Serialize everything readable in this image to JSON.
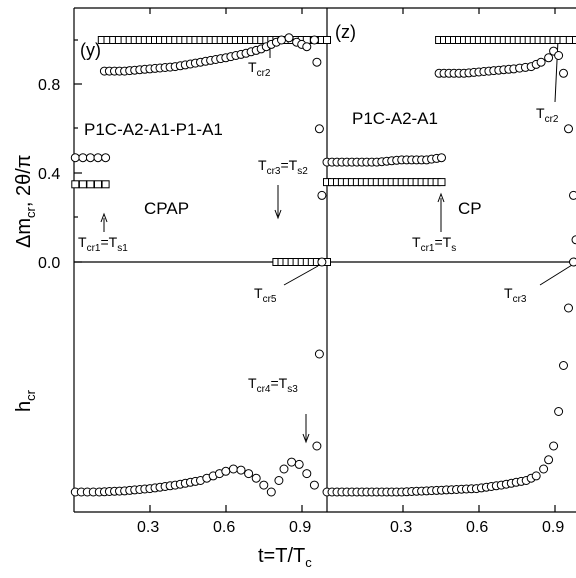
{
  "chart_data": [
    {
      "type": "scatter",
      "panel_label": "(y)",
      "structure_label": "P1C-A2-A1-P1-A1",
      "phase_label": "CPAP",
      "xlim": [
        0.0,
        1.0
      ],
      "ylim_upper": [
        0.0,
        1.12
      ],
      "series": [
        {
          "marker": "square",
          "segments": [
            {
              "x": [
                0.005,
                0.035,
                0.065,
                0.095,
                0.125
              ],
              "y": [
                0.35,
                0.35,
                0.35,
                0.35,
                0.35
              ]
            },
            {
              "x": [
                0.11,
                0.2,
                0.3,
                0.4,
                0.5,
                0.6,
                0.7,
                0.8,
                0.88,
                0.92,
                0.95,
                0.98,
                1.0
              ],
              "y": [
                1.0,
                1.0,
                1.0,
                1.0,
                1.0,
                1.0,
                1.0,
                1.0,
                1.0,
                1.0,
                1.0,
                1.0,
                1.0
              ]
            },
            {
              "x": [
                0.8,
                0.82,
                0.84,
                0.86,
                0.88,
                0.9,
                0.92,
                0.94,
                0.96,
                0.98,
                1.0
              ],
              "y": [
                0.0,
                0.0,
                0.0,
                0.0,
                0.0,
                0.0,
                0.0,
                0.0,
                0.0,
                0.0,
                0.0
              ]
            }
          ]
        },
        {
          "marker": "circle",
          "segments": [
            {
              "x": [
                0.005,
                0.035,
                0.065,
                0.095,
                0.125
              ],
              "y": [
                0.47,
                0.47,
                0.47,
                0.47,
                0.47
              ]
            },
            {
              "x": [
                0.12,
                0.2,
                0.3,
                0.4,
                0.5,
                0.6,
                0.68,
                0.74,
                0.78,
                0.82,
                0.85,
                0.88,
                0.92,
                0.95,
                0.96,
                0.97,
                0.98
              ],
              "y": [
                0.86,
                0.86,
                0.87,
                0.88,
                0.9,
                0.92,
                0.94,
                0.96,
                0.98,
                1.0,
                1.01,
                0.99,
                0.97,
                1.0,
                0.9,
                0.6,
                0.3
              ]
            }
          ]
        }
      ],
      "h_cr_circle": {
        "x": [
          0.005,
          0.1,
          0.2,
          0.3,
          0.4,
          0.5,
          0.55,
          0.6,
          0.63,
          0.66,
          0.69,
          0.72,
          0.75,
          0.78,
          0.81,
          0.83,
          0.86,
          0.89,
          0.92,
          0.95,
          0.96,
          0.97,
          0.98
        ],
        "y": [
          0.0,
          0.0,
          0.005,
          0.015,
          0.03,
          0.05,
          0.07,
          0.09,
          0.1,
          0.095,
          0.08,
          0.06,
          0.03,
          0.0,
          0.05,
          0.1,
          0.13,
          0.12,
          0.08,
          0.03,
          0.2,
          0.6,
          1.0
        ]
      },
      "annotations": [
        "T_cr1=T_s1",
        "T_cr2",
        "T_cr3=T_s2",
        "T_cr4=T_s3",
        "T_cr5"
      ]
    },
    {
      "type": "scatter",
      "panel_label": "(z)",
      "structure_label": "P1C-A2-A1",
      "phase_label": "CP",
      "xlim": [
        0.0,
        1.0
      ],
      "ylim_upper": [
        0.0,
        1.12
      ],
      "series": [
        {
          "marker": "square",
          "segments": [
            {
              "x": [
                0.0,
                0.1,
                0.2,
                0.3,
                0.4,
                0.46
              ],
              "y": [
                0.36,
                0.36,
                0.36,
                0.36,
                0.36,
                0.36
              ]
            },
            {
              "x": [
                0.45,
                0.55,
                0.65,
                0.75,
                0.85,
                0.95,
                1.0
              ],
              "y": [
                1.0,
                1.0,
                1.0,
                1.0,
                1.0,
                1.0,
                1.0
              ]
            }
          ]
        },
        {
          "marker": "circle",
          "segments": [
            {
              "x": [
                0.0,
                0.1,
                0.2,
                0.3,
                0.4,
                0.46
              ],
              "y": [
                0.45,
                0.45,
                0.45,
                0.46,
                0.46,
                0.47
              ]
            },
            {
              "x": [
                0.45,
                0.55,
                0.65,
                0.75,
                0.82,
                0.86,
                0.89,
                0.91,
                0.93,
                0.95,
                0.97,
                0.99,
                1.0
              ],
              "y": [
                0.85,
                0.85,
                0.86,
                0.87,
                0.88,
                0.9,
                0.92,
                0.95,
                0.93,
                0.85,
                0.6,
                0.3,
                0.1
              ]
            }
          ]
        }
      ],
      "h_cr_circle": {
        "x": [
          0.0,
          0.1,
          0.2,
          0.3,
          0.4,
          0.5,
          0.6,
          0.7,
          0.8,
          0.84,
          0.87,
          0.89,
          0.91,
          0.93,
          0.95,
          0.97,
          0.99
        ],
        "y": [
          0.0,
          0.0,
          0.0,
          0.0,
          0.005,
          0.01,
          0.015,
          0.03,
          0.05,
          0.07,
          0.1,
          0.14,
          0.2,
          0.35,
          0.55,
          0.8,
          1.0
        ]
      },
      "annotations": [
        "T_cr1=T_s",
        "T_cr2",
        "T_cr3"
      ]
    }
  ],
  "axes": {
    "x_label": "t=T/T",
    "x_label_sub": "c",
    "x_ticks": [
      "0.3",
      "0.6",
      "0.9"
    ],
    "x_tick_values": [
      0.3,
      0.6,
      0.9
    ],
    "y_upper_label": "Δm",
    "y_upper_label_sub": "cr",
    "y_upper_label_rest": ",  2θ/π",
    "y_upper_ticks": [
      "0.0",
      "0.4",
      "0.8"
    ],
    "y_upper_tick_values": [
      0.0,
      0.4,
      0.8
    ],
    "y_lower_label": "h",
    "y_lower_label_sub": "cr"
  },
  "labels": {
    "y_panel": "(y)",
    "z_panel": "(z)",
    "y_structure": "P1C-A2-A1-P1-A1",
    "z_structure": "P1C-A2-A1",
    "y_phase": "CPAP",
    "z_phase": "CP",
    "t": "T",
    "cr1": "cr1",
    "cr2": "cr2",
    "cr3": "cr3",
    "cr4": "cr4",
    "cr5": "cr5",
    "s1": "s1",
    "s2": "s2",
    "s3": "s3",
    "s": "s",
    "eq": "="
  }
}
